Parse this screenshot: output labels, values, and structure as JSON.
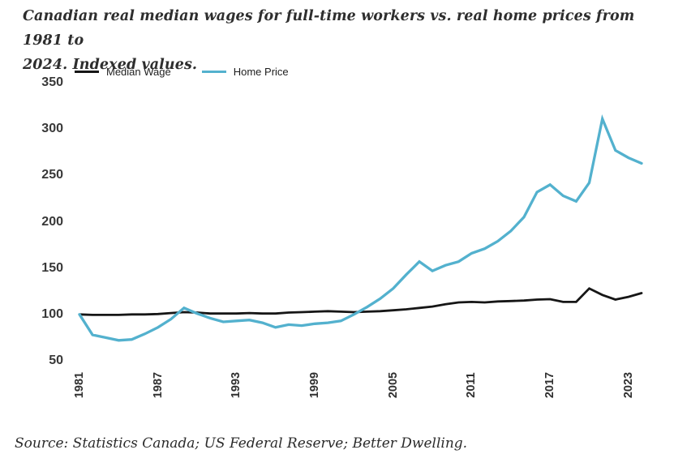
{
  "title": "Canadian real median wages for full-time workers vs. real home prices from 1981 to 2024. Indexed values.",
  "title_lines": {
    "line1": "Canadian real median wages for full-time workers vs. real home prices from 1981 to",
    "line2": "2024. Indexed values."
  },
  "source": "Source: Statistics Canada; US Federal Reserve; Better Dwelling.",
  "colors": {
    "median_wage": "#161616",
    "home_price": "#53b1ce",
    "text": "#2e2e2e"
  },
  "chart_data": {
    "type": "line",
    "title": "Canadian real median wages for full-time workers vs. real home prices from 1981 to 2024. Indexed values.",
    "xlabel": "",
    "ylabel": "",
    "ylim": [
      50,
      350
    ],
    "grid": false,
    "legend_position": "top",
    "x": [
      1981,
      1982,
      1983,
      1984,
      1985,
      1986,
      1987,
      1988,
      1989,
      1990,
      1991,
      1992,
      1993,
      1994,
      1995,
      1996,
      1997,
      1998,
      1999,
      2000,
      2001,
      2002,
      2003,
      2004,
      2005,
      2006,
      2007,
      2008,
      2009,
      2010,
      2011,
      2012,
      2013,
      2014,
      2015,
      2016,
      2017,
      2018,
      2019,
      2020,
      2021,
      2022,
      2023,
      2024
    ],
    "x_ticks": [
      1981,
      1987,
      1993,
      1999,
      2005,
      2011,
      2017,
      2023
    ],
    "y_ticks": [
      50,
      100,
      150,
      200,
      250,
      300,
      350
    ],
    "series": [
      {
        "name": "Median Wage",
        "color": "#161616",
        "values": [
          100,
          99.5,
          99.5,
          99.5,
          100,
          100,
          100.5,
          101.5,
          102.5,
          102,
          101,
          101,
          101,
          101.5,
          101,
          101,
          102,
          102.5,
          103,
          103.5,
          103,
          102.5,
          103,
          103.5,
          104.5,
          105.5,
          107,
          108.5,
          111,
          113,
          113.5,
          113,
          114,
          114.5,
          115,
          116,
          116.5,
          113.5,
          113.5,
          128,
          121,
          116,
          119,
          123
        ]
      },
      {
        "name": "Home Price",
        "color": "#53b1ce",
        "values": [
          100,
          78,
          75,
          72,
          73,
          79,
          86,
          95,
          107,
          101,
          96,
          92,
          93,
          94,
          91,
          86,
          89,
          88,
          90,
          91,
          93,
          100,
          108,
          117,
          128,
          143,
          157,
          147,
          153,
          157,
          166,
          171,
          179,
          190,
          205,
          232,
          240,
          228,
          222,
          242,
          311,
          277,
          269,
          263
        ]
      }
    ]
  }
}
